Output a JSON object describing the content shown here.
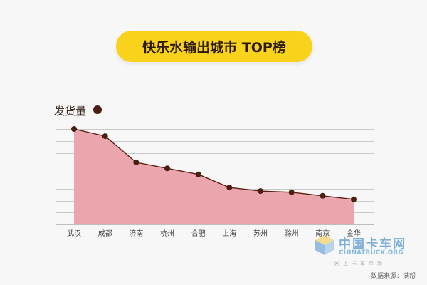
{
  "chart_data": {
    "type": "area",
    "title": "快乐水输出城市 TOP榜",
    "ylabel": "发货量",
    "xlabel": "",
    "categories": [
      "武汉",
      "成都",
      "济南",
      "杭州",
      "合肥",
      "上海",
      "苏州",
      "滁州",
      "南京",
      "金华"
    ],
    "values": [
      100,
      94,
      72,
      67,
      62,
      51,
      48,
      47,
      44,
      41
    ],
    "ylim": [
      20,
      106
    ],
    "y_tick_values": [
      30,
      40,
      50,
      60,
      70,
      80,
      90,
      100
    ],
    "grid": true,
    "colors": {
      "fill": "#eba6ad",
      "line": "#5a1f14",
      "point": "#4a1e12",
      "title_bg": "#f9d21c"
    }
  },
  "watermark": {
    "title": "中国卡车网",
    "url": "CHINATRUCK.ORG",
    "tagline": "网上卡车市场",
    "icon": "cube-logo-icon"
  },
  "source": "数据来源：满帮"
}
